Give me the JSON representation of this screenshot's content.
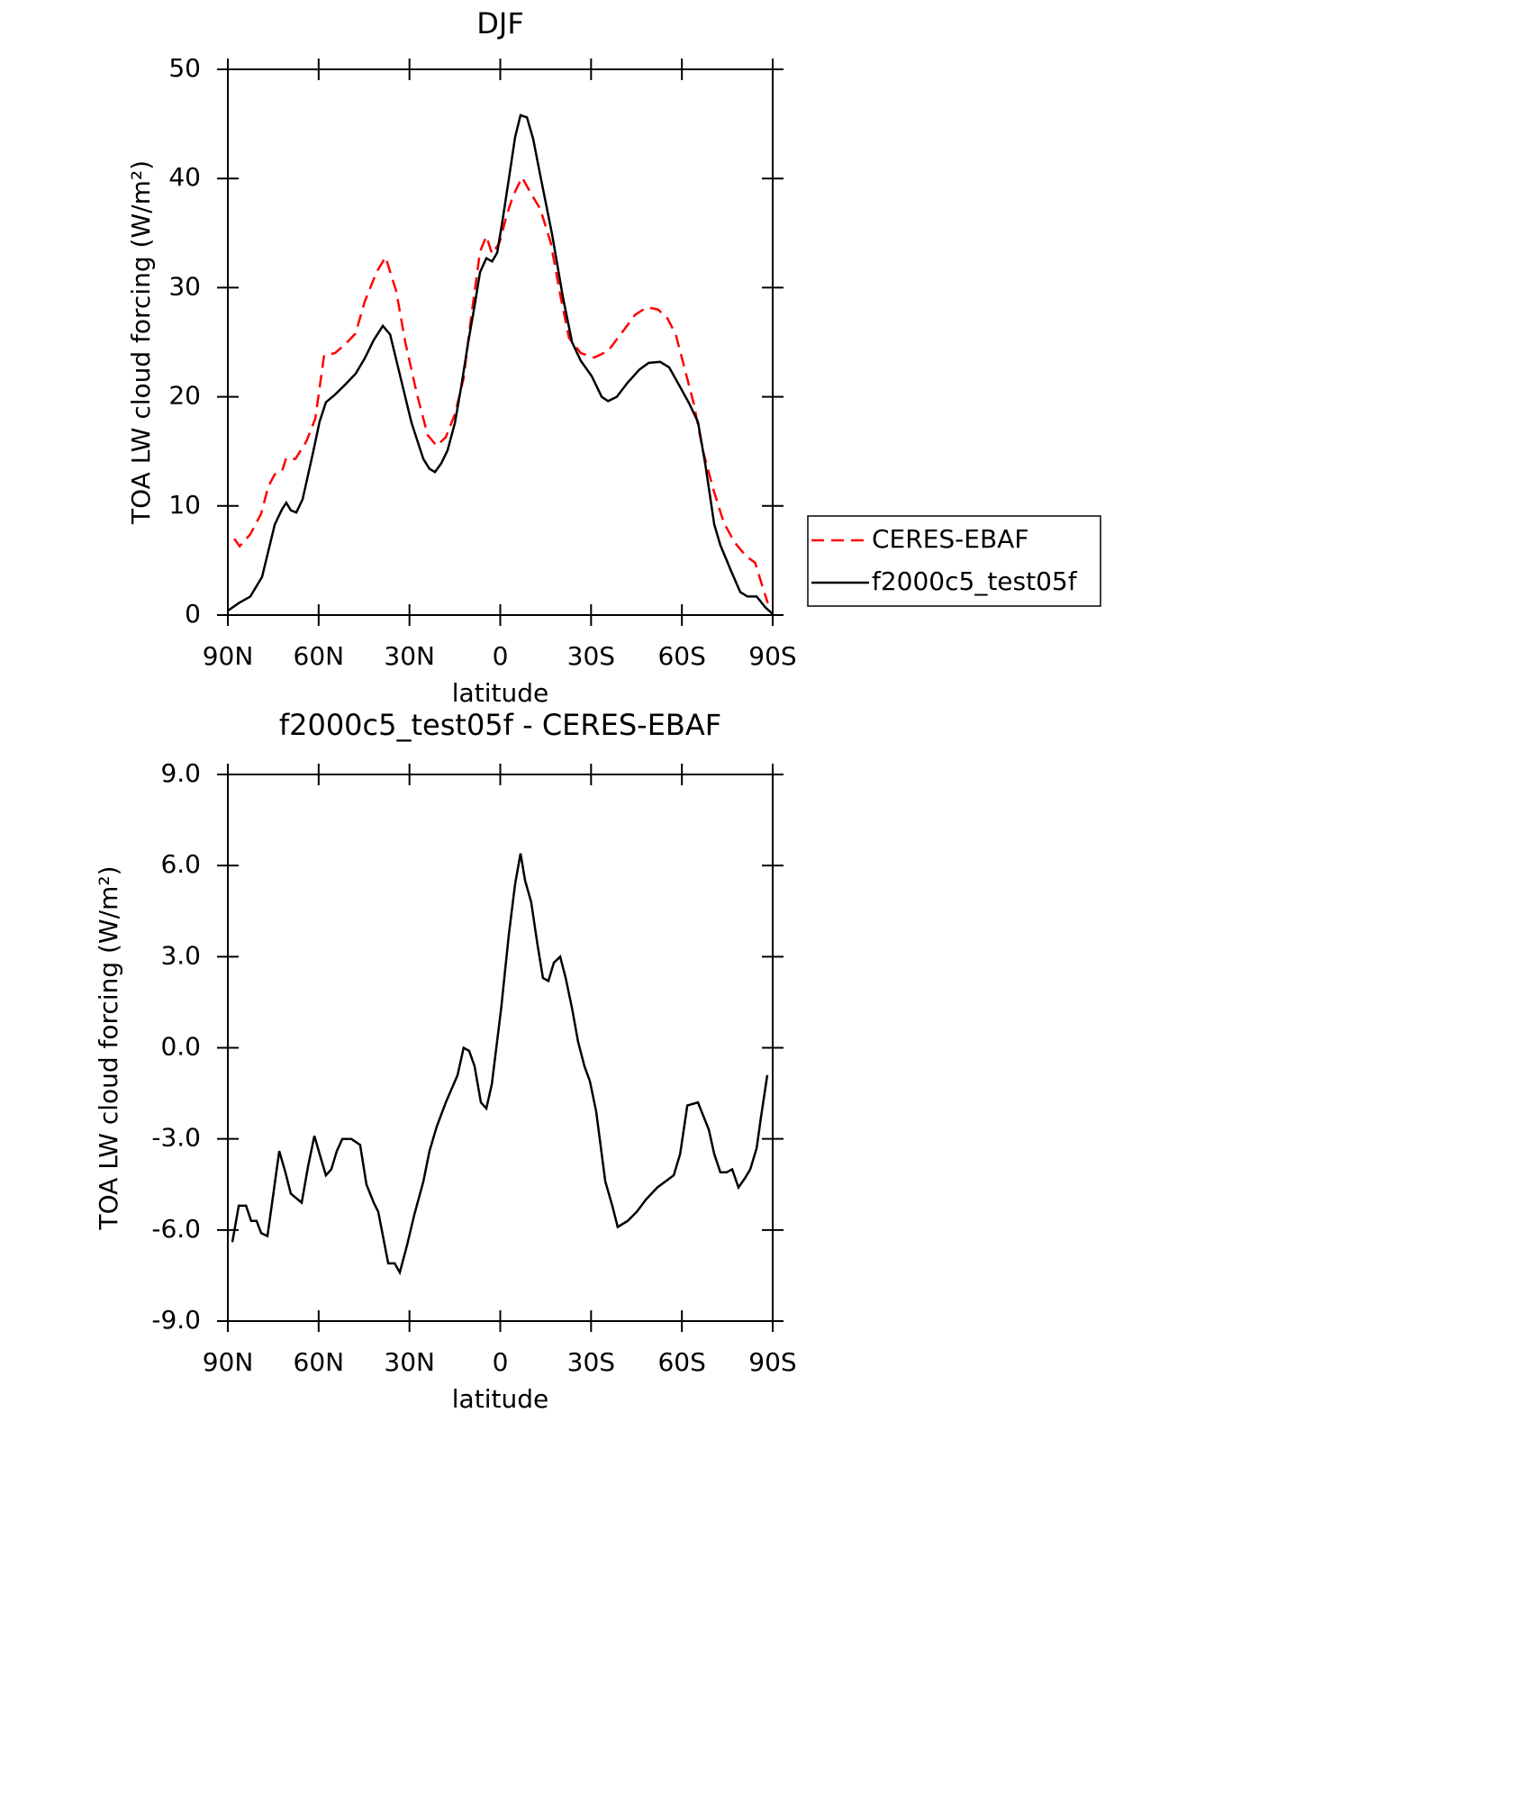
{
  "chart_data": [
    {
      "type": "line",
      "title": "DJF",
      "x_label": "latitude",
      "y_label": "TOA LW cloud forcing (W/m²)",
      "xlim": [
        90,
        -90
      ],
      "ylim": [
        0,
        50
      ],
      "xticks": [
        {
          "value": 90,
          "label": "90N"
        },
        {
          "value": 60,
          "label": "60N"
        },
        {
          "value": 30,
          "label": "30N"
        },
        0,
        {
          "value": -30,
          "label": "30S"
        },
        {
          "value": -60,
          "label": "60S"
        },
        {
          "value": -90,
          "label": "90S"
        }
      ],
      "yticks": [
        0,
        10,
        20,
        30,
        40,
        50
      ],
      "legend": "right",
      "series": [
        {
          "name": "CERES-EBAF",
          "color": "#ff0000",
          "dash": true,
          "x": [
            87.9,
            86.1,
            82.6,
            79.0,
            76.6,
            74.5,
            72.1,
            70.7,
            67.7,
            64.1,
            61.1,
            58.2,
            54.6,
            51.3,
            47.8,
            44.8,
            40.9,
            37.9,
            34.4,
            31.4,
            27.5,
            24.0,
            21.0,
            18.0,
            15.0,
            12.1,
            9.7,
            6.7,
            4.6,
            2.7,
            0.3,
            -2.1,
            -4.2,
            -7.2,
            -10.2,
            -13.2,
            -16.7,
            -19.7,
            -22.7,
            -26.6,
            -31.1,
            -35.6,
            -40.0,
            -44.5,
            -48.4,
            -52.0,
            -55.0,
            -58.0,
            -61.0,
            -63.9,
            -66.9,
            -70.5,
            -73.8,
            -77.3,
            -81.2,
            -84.2,
            -86.3,
            -88.4
          ],
          "values": [
            7.0,
            6.3,
            7.4,
            9.3,
            11.8,
            12.9,
            13.2,
            14.4,
            14.3,
            15.9,
            18.0,
            23.8,
            24.0,
            24.8,
            25.8,
            28.7,
            31.4,
            32.8,
            29.7,
            25.0,
            20.2,
            16.5,
            15.5,
            16.3,
            18.4,
            21.7,
            27.1,
            33.3,
            34.7,
            33.1,
            34.1,
            36.6,
            38.4,
            40.1,
            38.6,
            37.2,
            34.1,
            29.5,
            25.4,
            24.0,
            23.6,
            24.2,
            25.8,
            27.5,
            28.2,
            28.0,
            27.3,
            25.7,
            22.5,
            19.4,
            15.1,
            11.4,
            8.5,
            6.7,
            5.4,
            4.8,
            2.9,
            1.1
          ]
        },
        {
          "name": "f2000c5_test05f",
          "color": "#000000",
          "dash": false,
          "x": [
            90,
            86.4,
            82.6,
            78.7,
            74.5,
            72.1,
            70.7,
            69.2,
            67.4,
            65.3,
            62.0,
            59.7,
            57.6,
            54.6,
            51.3,
            47.8,
            44.8,
            41.8,
            38.8,
            36.4,
            33.5,
            29.3,
            25.4,
            23.4,
            21.6,
            19.5,
            17.4,
            15.0,
            12.9,
            10.6,
            8.5,
            6.7,
            4.6,
            2.7,
            1.0,
            -0.7,
            -2.8,
            -4.9,
            -6.7,
            -8.8,
            -10.9,
            -13.2,
            -17.1,
            -20.7,
            -23.7,
            -26.6,
            -30.2,
            -33.5,
            -35.6,
            -38.5,
            -42.1,
            -46.0,
            -49.0,
            -52.8,
            -55.8,
            -59.4,
            -62.4,
            -65.3,
            -67.7,
            -70.7,
            -72.7,
            -76.3,
            -79.3,
            -81.7,
            -84.7,
            -87.6,
            -90
          ],
          "values": [
            0.4,
            1.1,
            1.7,
            3.5,
            8.3,
            9.7,
            10.3,
            9.6,
            9.4,
            10.6,
            14.7,
            17.7,
            19.5,
            20.2,
            21.1,
            22.1,
            23.5,
            25.2,
            26.5,
            25.7,
            22.4,
            17.6,
            14.3,
            13.4,
            13.1,
            13.9,
            15.1,
            17.6,
            20.9,
            25.0,
            28.3,
            31.4,
            32.7,
            32.4,
            33.2,
            36.1,
            39.9,
            43.8,
            45.8,
            45.6,
            43.6,
            40.3,
            34.9,
            29.1,
            25.0,
            23.3,
            21.9,
            20.0,
            19.6,
            20.0,
            21.3,
            22.5,
            23.1,
            23.2,
            22.7,
            20.9,
            19.4,
            17.7,
            13.9,
            8.3,
            6.4,
            4.0,
            2.1,
            1.7,
            1.7,
            0.7,
            0.1
          ]
        }
      ]
    },
    {
      "type": "line",
      "title": "f2000c5_test05f - CERES-EBAF",
      "x_label": "latitude",
      "y_label": "TOA LW cloud forcing (W/m²)",
      "xlim": [
        90,
        -90
      ],
      "ylim": [
        -9,
        9
      ],
      "xticks": [
        {
          "value": 90,
          "label": "90N"
        },
        {
          "value": 60,
          "label": "60N"
        },
        {
          "value": 30,
          "label": "30N"
        },
        0,
        {
          "value": -30,
          "label": "30S"
        },
        {
          "value": -60,
          "label": "60S"
        },
        {
          "value": -90,
          "label": "90S"
        }
      ],
      "yticks": [
        {
          "value": -9,
          "label": "-9.0"
        },
        {
          "value": -6,
          "label": "-6.0"
        },
        {
          "value": -3,
          "label": "-3.0"
        },
        {
          "value": 0,
          "label": "0.0"
        },
        {
          "value": 3,
          "label": "3.0"
        },
        {
          "value": 6,
          "label": "6.0"
        },
        {
          "value": 9,
          "label": "9.0"
        }
      ],
      "series": [
        {
          "color": "#000000",
          "dash": false,
          "x": [
            88.5,
            86.4,
            84.0,
            82.3,
            80.5,
            79.0,
            76.9,
            73.0,
            71.0,
            69.2,
            65.6,
            63.5,
            61.4,
            59.4,
            57.6,
            55.8,
            54.0,
            52.2,
            49.2,
            46.3,
            44.2,
            41.8,
            40.3,
            37.0,
            34.9,
            33.2,
            30.8,
            28.4,
            25.4,
            23.4,
            21.0,
            18.0,
            14.1,
            12.1,
            10.3,
            8.5,
            6.4,
            4.6,
            2.8,
            -0.3,
            -2.8,
            -4.9,
            -6.7,
            -8.2,
            -10.2,
            -12.3,
            -14.1,
            -15.9,
            -17.7,
            -19.8,
            -21.6,
            -23.7,
            -25.7,
            -27.8,
            -29.6,
            -31.7,
            -34.7,
            -37.0,
            -38.8,
            -42.1,
            -45.1,
            -48.1,
            -51.9,
            -57.3,
            -59.4,
            -61.8,
            -65.3,
            -68.9,
            -70.7,
            -72.7,
            -74.8,
            -76.6,
            -78.7,
            -80.8,
            -82.6,
            -84.7,
            -86.1,
            -88.2
          ],
          "values": [
            -6.4,
            -5.2,
            -5.2,
            -5.7,
            -5.7,
            -6.1,
            -6.2,
            -3.4,
            -4.1,
            -4.8,
            -5.1,
            -3.9,
            -2.9,
            -3.6,
            -4.2,
            -4.0,
            -3.4,
            -3.0,
            -3.0,
            -3.2,
            -4.5,
            -5.1,
            -5.4,
            -7.1,
            -7.1,
            -7.4,
            -6.5,
            -5.5,
            -4.4,
            -3.4,
            -2.6,
            -1.8,
            -0.9,
            0.0,
            -0.1,
            -0.6,
            -1.8,
            -2.0,
            -1.2,
            1.3,
            3.7,
            5.4,
            6.4,
            5.5,
            4.8,
            3.4,
            2.3,
            2.2,
            2.8,
            3.0,
            2.3,
            1.3,
            0.2,
            -0.6,
            -1.1,
            -2.1,
            -4.4,
            -5.2,
            -5.9,
            -5.7,
            -5.4,
            -5.0,
            -4.6,
            -4.2,
            -3.5,
            -1.9,
            -1.8,
            -2.7,
            -3.5,
            -4.1,
            -4.1,
            -4.0,
            -4.6,
            -4.3,
            -4.0,
            -3.3,
            -2.3,
            -0.9
          ]
        }
      ]
    }
  ]
}
